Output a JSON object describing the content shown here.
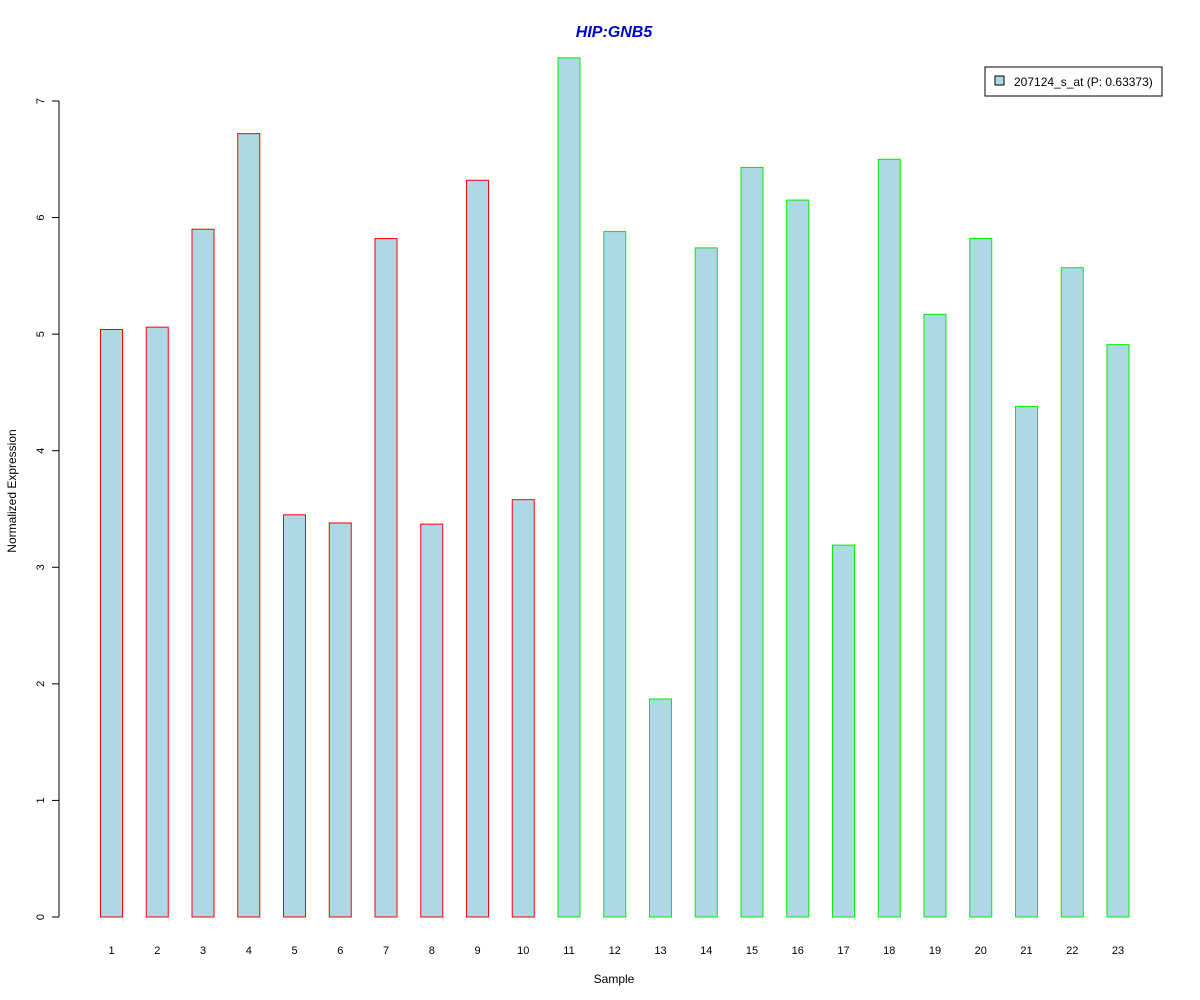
{
  "chart_data": {
    "type": "bar",
    "title": "HIP:GNB5",
    "xlabel": "Sample",
    "ylabel": "Normalized Expression",
    "ylim": [
      0,
      7
    ],
    "yticks": [
      "0",
      "1",
      "2",
      "3",
      "4",
      "5",
      "6",
      "7"
    ],
    "categories": [
      "1",
      "2",
      "3",
      "4",
      "5",
      "6",
      "7",
      "8",
      "9",
      "10",
      "11",
      "12",
      "13",
      "14",
      "15",
      "16",
      "17",
      "18",
      "19",
      "20",
      "21",
      "22",
      "23"
    ],
    "values": [
      5.04,
      5.06,
      5.9,
      6.72,
      3.45,
      3.38,
      5.82,
      3.37,
      6.32,
      3.58,
      7.37,
      5.88,
      1.87,
      5.74,
      6.43,
      6.15,
      3.19,
      6.5,
      5.17,
      5.82,
      4.38,
      5.57,
      4.91
    ],
    "groups": [
      "red",
      "red",
      "red",
      "red",
      "red",
      "red",
      "red",
      "red",
      "red",
      "red",
      "green",
      "green",
      "green",
      "green",
      "green",
      "green",
      "green",
      "green",
      "green",
      "green",
      "green",
      "green",
      "green"
    ],
    "legend": {
      "label": "207124_s_at (P: 0.63373)",
      "position": "top-right"
    },
    "grid": false
  },
  "colors": {
    "title": "#0000CD",
    "bar_fill": "#ADD8E6",
    "red": "#FF0000",
    "green": "#00EE00",
    "axis": "#000000"
  }
}
